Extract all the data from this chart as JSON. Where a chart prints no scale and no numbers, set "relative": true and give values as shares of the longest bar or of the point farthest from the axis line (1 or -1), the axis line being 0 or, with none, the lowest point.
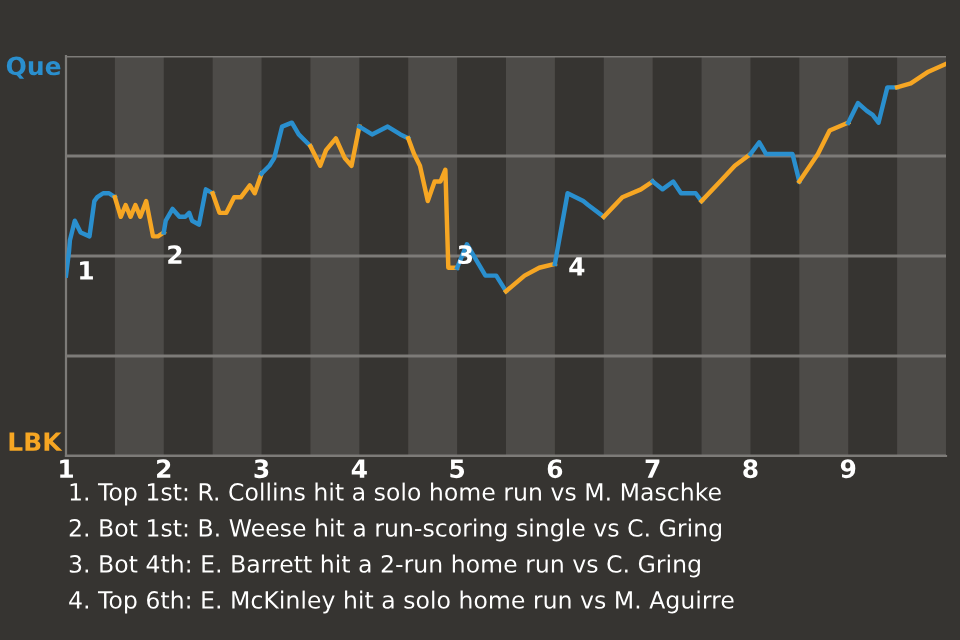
{
  "chart_data": {
    "type": "line",
    "relative": true,
    "tick_labels": "x",
    "xlim": [
      1,
      10
    ],
    "xticks": [
      1,
      2,
      3,
      4,
      5,
      6,
      7,
      8,
      9
    ],
    "grid": "y",
    "marker": "none",
    "line_style": "solid",
    "bands": [
      {
        "axis": "x",
        "from": 1.5,
        "to": 2,
        "color": "#4d4b48"
      },
      {
        "axis": "x",
        "from": 2.5,
        "to": 3,
        "color": "#4d4b48"
      },
      {
        "axis": "x",
        "from": 3.5,
        "to": 4,
        "color": "#4d4b48"
      },
      {
        "axis": "x",
        "from": 4.5,
        "to": 5,
        "color": "#4d4b48"
      },
      {
        "axis": "x",
        "from": 5.5,
        "to": 6,
        "color": "#4d4b48"
      },
      {
        "axis": "x",
        "from": 6.5,
        "to": 7,
        "color": "#4d4b48"
      },
      {
        "axis": "x",
        "from": 7.5,
        "to": 8,
        "color": "#4d4b48"
      },
      {
        "axis": "x",
        "from": 8.5,
        "to": 9,
        "color": "#4d4b48"
      },
      {
        "axis": "x",
        "from": 9.5,
        "to": 10,
        "color": "#4d4b48"
      }
    ],
    "series": [
      {
        "name": "Que",
        "color": "#2a8fce",
        "x": [
          1.0,
          1.03,
          1.04,
          1.09,
          1.15,
          1.24,
          1.29,
          1.32,
          1.38,
          1.44,
          1.5
        ],
        "values": [
          0.46,
          0.52,
          0.55,
          0.6,
          0.57,
          0.56,
          0.65,
          0.66,
          0.67,
          0.67,
          0.66
        ]
      },
      {
        "name": "LBK",
        "color": "#f6a623",
        "x": [
          1.5,
          1.56,
          1.61,
          1.66,
          1.71,
          1.76,
          1.82,
          1.89,
          1.94,
          2.0
        ],
        "values": [
          0.66,
          0.61,
          0.64,
          0.61,
          0.64,
          0.61,
          0.65,
          0.56,
          0.56,
          0.57
        ]
      },
      {
        "color": "#2a8fce",
        "x": [
          2.0,
          2.02,
          2.09,
          2.16,
          2.22,
          2.26,
          2.29,
          2.36,
          2.43,
          2.5
        ],
        "values": [
          0.57,
          0.6,
          0.63,
          0.61,
          0.61,
          0.62,
          0.6,
          0.59,
          0.68,
          0.67
        ]
      },
      {
        "color": "#f6a623",
        "x": [
          2.5,
          2.57,
          2.64,
          2.72,
          2.79,
          2.88,
          2.93,
          3.0
        ],
        "values": [
          0.67,
          0.62,
          0.62,
          0.66,
          0.66,
          0.69,
          0.67,
          0.72
        ]
      },
      {
        "color": "#2a8fce",
        "x": [
          3.0,
          3.08,
          3.13,
          3.21,
          3.31,
          3.38,
          3.5
        ],
        "values": [
          0.72,
          0.74,
          0.76,
          0.84,
          0.85,
          0.82,
          0.79
        ]
      },
      {
        "color": "#f6a623",
        "x": [
          3.5,
          3.6,
          3.66,
          3.76,
          3.85,
          3.92,
          4.0
        ],
        "values": [
          0.79,
          0.74,
          0.78,
          0.81,
          0.76,
          0.74,
          0.84
        ]
      },
      {
        "color": "#2a8fce",
        "x": [
          4.0,
          4.13,
          4.29,
          4.42,
          4.5
        ],
        "values": [
          0.84,
          0.82,
          0.84,
          0.82,
          0.81
        ]
      },
      {
        "color": "#f6a623",
        "x": [
          4.5,
          4.56,
          4.62,
          4.7,
          4.77,
          4.83,
          4.88,
          4.91,
          5.0
        ],
        "values": [
          0.81,
          0.77,
          0.74,
          0.65,
          0.7,
          0.7,
          0.73,
          0.48,
          0.48
        ]
      },
      {
        "color": "#2a8fce",
        "x": [
          5.0,
          5.1,
          5.29,
          5.4,
          5.5
        ],
        "values": [
          0.48,
          0.54,
          0.46,
          0.46,
          0.42
        ]
      },
      {
        "color": "#f6a623",
        "x": [
          5.5,
          5.69,
          5.84,
          6.0
        ],
        "values": [
          0.42,
          0.46,
          0.48,
          0.49
        ]
      },
      {
        "color": "#2a8fce",
        "x": [
          6.0,
          6.13,
          6.29,
          6.34,
          6.5
        ],
        "values": [
          0.49,
          0.67,
          0.65,
          0.64,
          0.61
        ]
      },
      {
        "color": "#f6a623",
        "x": [
          6.5,
          6.69,
          6.88,
          7.0
        ],
        "values": [
          0.61,
          0.66,
          0.68,
          0.7
        ]
      },
      {
        "color": "#2a8fce",
        "x": [
          7.0,
          7.1,
          7.21,
          7.29,
          7.44,
          7.5
        ],
        "values": [
          0.7,
          0.68,
          0.7,
          0.67,
          0.67,
          0.65
        ]
      },
      {
        "color": "#f6a623",
        "x": [
          7.5,
          7.69,
          7.84,
          8.0
        ],
        "values": [
          0.65,
          0.7,
          0.74,
          0.77
        ]
      },
      {
        "color": "#2a8fce",
        "x": [
          8.0,
          8.09,
          8.16,
          8.43,
          8.5
        ],
        "values": [
          0.77,
          0.8,
          0.77,
          0.77,
          0.7
        ]
      },
      {
        "color": "#f6a623",
        "x": [
          8.5,
          8.69,
          8.81,
          9.0
        ],
        "values": [
          0.7,
          0.77,
          0.83,
          0.85
        ]
      },
      {
        "color": "#2a8fce",
        "x": [
          9.0,
          9.1,
          9.19,
          9.25,
          9.31,
          9.4,
          9.5
        ],
        "values": [
          0.85,
          0.9,
          0.88,
          0.87,
          0.85,
          0.94,
          0.94
        ]
      },
      {
        "color": "#f6a623",
        "x": [
          9.5,
          9.64,
          9.82,
          10.0
        ],
        "values": [
          0.94,
          0.95,
          0.98,
          1.0
        ]
      }
    ],
    "annotations": [
      {
        "text": "1",
        "x": 1.03,
        "y": 0.52
      },
      {
        "text": "2",
        "x": 1.94,
        "y": 0.56
      },
      {
        "text": "3",
        "x": 4.91,
        "y": 0.56
      },
      {
        "text": "4",
        "x": 6.05,
        "y": 0.53
      },
      "1. Top 1st: R. Collins hit a solo home run vs M. Maschke",
      "2. Bot 1st: B. Weese hit a run-scoring single vs C. Gring",
      "3. Bot 4th: E. Barrett hit a 2-run home run vs C. Gring",
      "4. Top 6th: E. McKinley hit a solo home run vs M. Aguirre"
    ]
  }
}
